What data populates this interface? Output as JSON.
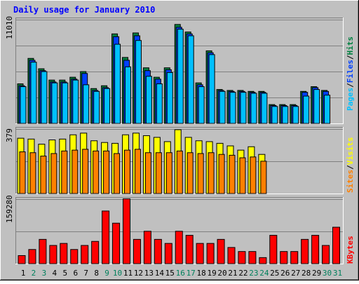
{
  "title": "Daily usage for January 2010",
  "colors": {
    "background": "#c0c0c0",
    "title": "#0000ff",
    "hits": "#008040",
    "files": "#0040ff",
    "pages": "#00c0ff",
    "visits": "#ffff00",
    "sites": "#ff8000",
    "kbytes": "#ff0000",
    "weekday_label": "#000000",
    "weekend_label": "#00805c"
  },
  "chart_data": [
    {
      "type": "bar",
      "panel": "top",
      "scale_label": "11010",
      "ylim": [
        0,
        11010
      ],
      "categories": [
        "1",
        "2",
        "3",
        "4",
        "5",
        "6",
        "7",
        "8",
        "9",
        "10",
        "11",
        "12",
        "13",
        "14",
        "15",
        "16",
        "17",
        "18",
        "19",
        "20",
        "21",
        "22",
        "23",
        "24",
        "25",
        "26",
        "27",
        "28",
        "29",
        "30",
        "31"
      ],
      "series": [
        {
          "name": "Hits",
          "values": [
            4200,
            6900,
            5800,
            4600,
            4600,
            4900,
            5500,
            3700,
            4000,
            9500,
            7000,
            9600,
            5900,
            4900,
            5900,
            10500,
            9700,
            4300,
            7700,
            3600,
            3500,
            3500,
            3400,
            3400,
            2000,
            2000,
            2000,
            3400,
            3900,
            3500,
            0
          ]
        },
        {
          "name": "Files",
          "values": [
            4000,
            6700,
            5600,
            4400,
            4400,
            4700,
            5300,
            3500,
            3800,
            9200,
            6700,
            9300,
            5600,
            4700,
            5700,
            10200,
            9500,
            4100,
            7500,
            3500,
            3400,
            3400,
            3300,
            3300,
            1900,
            1900,
            1900,
            3300,
            3800,
            3400,
            0
          ]
        },
        {
          "name": "Pages",
          "values": [
            3900,
            6500,
            5500,
            4300,
            4300,
            4600,
            4100,
            3400,
            3700,
            8400,
            6000,
            8800,
            5000,
            4200,
            5400,
            10000,
            9300,
            3900,
            7300,
            3400,
            3300,
            3300,
            3200,
            3200,
            1800,
            1800,
            1800,
            2900,
            3600,
            3000,
            0
          ]
        }
      ]
    },
    {
      "type": "bar",
      "panel": "middle",
      "scale_label": "379",
      "ylim": [
        0,
        379
      ],
      "categories": [
        "1",
        "2",
        "3",
        "4",
        "5",
        "6",
        "7",
        "8",
        "9",
        "10",
        "11",
        "12",
        "13",
        "14",
        "15",
        "16",
        "17",
        "18",
        "19",
        "20",
        "21",
        "22",
        "23",
        "24",
        "25",
        "26",
        "27",
        "28",
        "29",
        "30",
        "31"
      ],
      "series": [
        {
          "name": "Visits",
          "values": [
            325,
            320,
            290,
            315,
            320,
            345,
            355,
            310,
            300,
            295,
            345,
            355,
            340,
            330,
            305,
            375,
            330,
            310,
            305,
            295,
            280,
            255,
            275,
            230,
            0,
            0,
            0,
            0,
            0,
            0,
            0
          ]
        },
        {
          "name": "Sites",
          "values": [
            245,
            240,
            220,
            235,
            250,
            255,
            260,
            250,
            250,
            235,
            255,
            260,
            240,
            240,
            240,
            250,
            240,
            235,
            240,
            230,
            225,
            210,
            215,
            190,
            0,
            0,
            0,
            0,
            0,
            0,
            0
          ]
        }
      ]
    },
    {
      "type": "bar",
      "panel": "bottom",
      "scale_label": "159280",
      "ylim": [
        0,
        159280
      ],
      "categories": [
        "1",
        "2",
        "3",
        "4",
        "5",
        "6",
        "7",
        "8",
        "9",
        "10",
        "11",
        "12",
        "13",
        "14",
        "15",
        "16",
        "17",
        "18",
        "19",
        "20",
        "21",
        "22",
        "23",
        "24",
        "25",
        "26",
        "27",
        "28",
        "29",
        "30",
        "31"
      ],
      "series": [
        {
          "name": "KBytes",
          "values": [
            20000,
            35000,
            60000,
            45000,
            50000,
            35000,
            45000,
            55000,
            130000,
            100000,
            160000,
            60000,
            80000,
            60000,
            50000,
            80000,
            70000,
            50000,
            50000,
            60000,
            40000,
            30000,
            30000,
            15000,
            70000,
            30000,
            30000,
            60000,
            70000,
            45000,
            90000
          ]
        }
      ]
    }
  ],
  "panels": {
    "top": {
      "legend": {
        "pages": "Pages",
        "sep1": "/",
        "files": "Files",
        "sep2": "/",
        "hits": "Hits"
      }
    },
    "middle": {
      "legend": {
        "sites": "Sites",
        "sep": "/",
        "visits": "Visits"
      }
    },
    "bottom": {
      "legend": {
        "kbytes": "KBytes"
      }
    }
  },
  "x_labels": [
    "1",
    "2",
    "3",
    "4",
    "5",
    "6",
    "7",
    "8",
    "9",
    "10",
    "11",
    "12",
    "13",
    "14",
    "15",
    "16",
    "17",
    "18",
    "19",
    "20",
    "21",
    "22",
    "23",
    "24",
    "25",
    "26",
    "27",
    "28",
    "29",
    "30",
    "31"
  ],
  "weekend_days": [
    2,
    3,
    9,
    10,
    16,
    17,
    23,
    24,
    30,
    31
  ]
}
